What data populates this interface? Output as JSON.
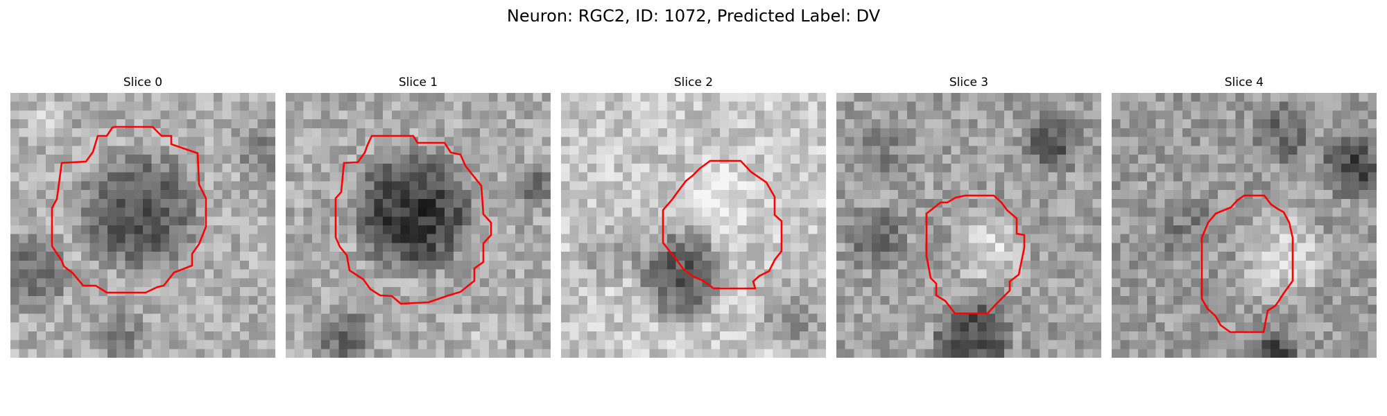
{
  "figure": {
    "title": "Neuron: RGC2, ID: 1072, Predicted Label: DV",
    "outline_color": "#ff0000",
    "colormap": "grayscale",
    "panels": [
      {
        "title": "Slice 0",
        "cell_tone": "dark"
      },
      {
        "title": "Slice 1",
        "cell_tone": "dark"
      },
      {
        "title": "Slice 2",
        "cell_tone": "light"
      },
      {
        "title": "Slice 3",
        "cell_tone": "light"
      },
      {
        "title": "Slice 4",
        "cell_tone": "light"
      }
    ]
  }
}
